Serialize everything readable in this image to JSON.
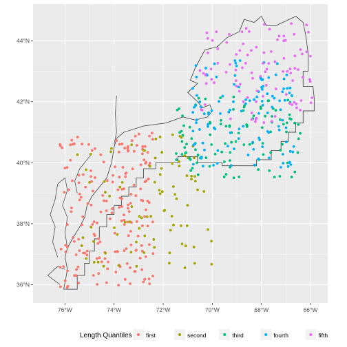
{
  "chart_data": {
    "type": "scatter",
    "title": "",
    "xlabel": "",
    "ylabel": "",
    "xlim": [
      -77.3,
      -65.3
    ],
    "ylim": [
      35.4,
      45.2
    ],
    "x_ticks": [
      {
        "value": -76,
        "label": "76°W"
      },
      {
        "value": -74,
        "label": "74°W"
      },
      {
        "value": -72,
        "label": "72°W"
      },
      {
        "value": -70,
        "label": "70°W"
      },
      {
        "value": -68,
        "label": "68°W"
      },
      {
        "value": -66,
        "label": "66°W"
      }
    ],
    "y_ticks": [
      {
        "value": 36,
        "label": "36°N"
      },
      {
        "value": 38,
        "label": "38°N"
      },
      {
        "value": 40,
        "label": "40°N"
      },
      {
        "value": 42,
        "label": "42°N"
      },
      {
        "value": 44,
        "label": "44°N"
      }
    ],
    "legend": {
      "title": "Length Quantiles",
      "position": "bottom"
    },
    "series": [
      {
        "name": "first",
        "color": "#F8766D",
        "region": {
          "lon": [
            -76.2,
            -72.4
          ],
          "lat": [
            35.9,
            41.0
          ]
        }
      },
      {
        "name": "second",
        "color": "#A3A500",
        "region": {
          "lon": [
            -75.5,
            -70.0
          ],
          "lat": [
            36.5,
            41.0
          ]
        }
      },
      {
        "name": "third",
        "color": "#00BF7D",
        "region": {
          "lon": [
            -71.5,
            -66.4
          ],
          "lat": [
            39.5,
            42.2
          ]
        }
      },
      {
        "name": "fourth",
        "color": "#00B0F6",
        "region": {
          "lon": [
            -70.8,
            -66.6
          ],
          "lat": [
            39.8,
            43.4
          ]
        }
      },
      {
        "name": "fifth",
        "color": "#E76BF3",
        "region": {
          "lon": [
            -70.5,
            -65.9
          ],
          "lat": [
            41.3,
            44.6
          ]
        }
      }
    ]
  }
}
